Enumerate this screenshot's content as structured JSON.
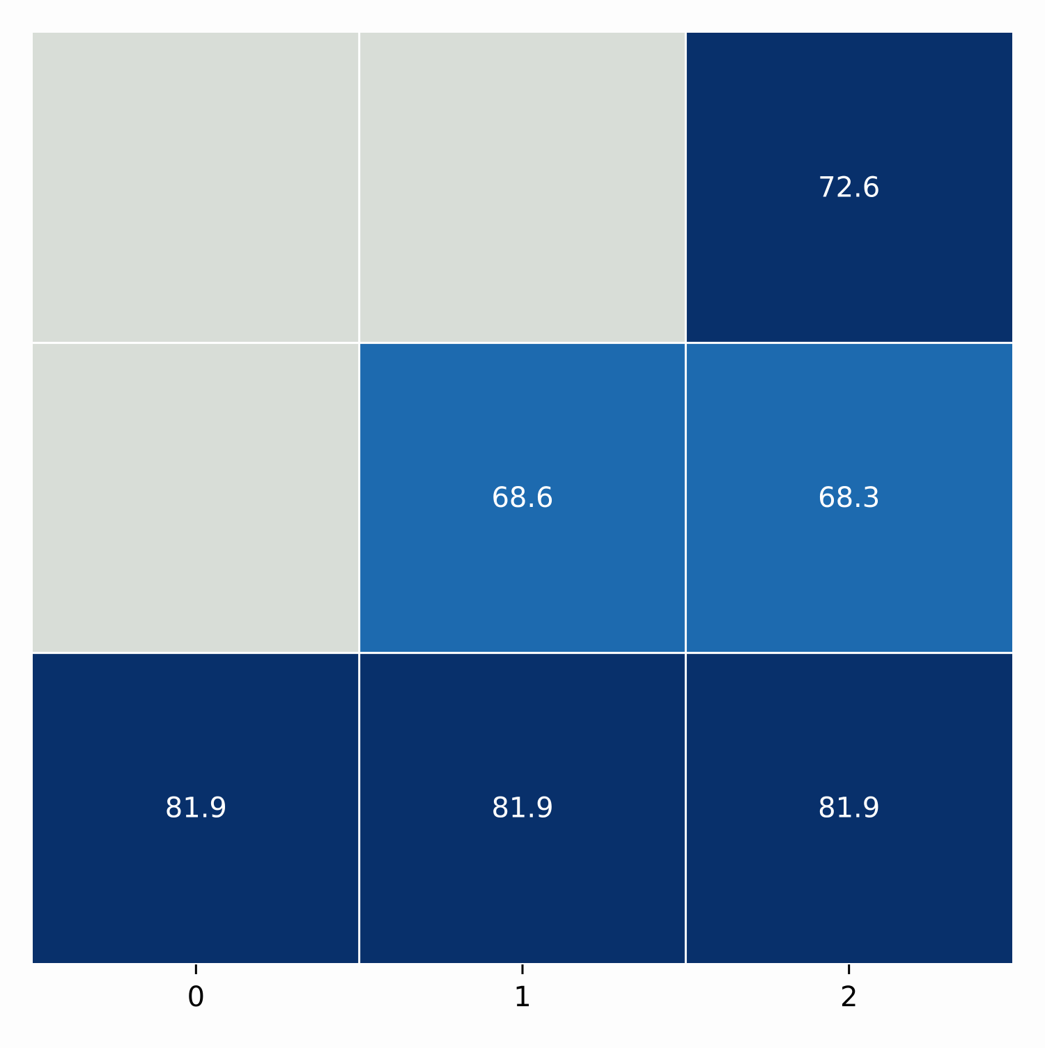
{
  "chart_data": {
    "type": "heatmap",
    "title": "",
    "xlabel": "",
    "ylabel": "",
    "x_categories": [
      "0",
      "1",
      "2"
    ],
    "rows": [
      [
        null,
        null,
        72.6
      ],
      [
        null,
        68.6,
        68.3
      ],
      [
        81.9,
        81.9,
        81.9
      ]
    ],
    "cell_labels": [
      [
        "",
        "",
        "72.6"
      ],
      [
        "",
        "68.6",
        "68.3"
      ],
      [
        "81.9",
        "81.9",
        "81.9"
      ]
    ],
    "colorscale": "Blues",
    "missing_color": "#d8ddd7",
    "value_colors": {
      "68.3": "#1d6aaf",
      "68.6": "#1d6aaf",
      "72.6": "#08306b",
      "81.9": "#08306b"
    },
    "grid_line_color": "#ffffff",
    "y_tick_labels_shown": false,
    "colorbar": false
  }
}
